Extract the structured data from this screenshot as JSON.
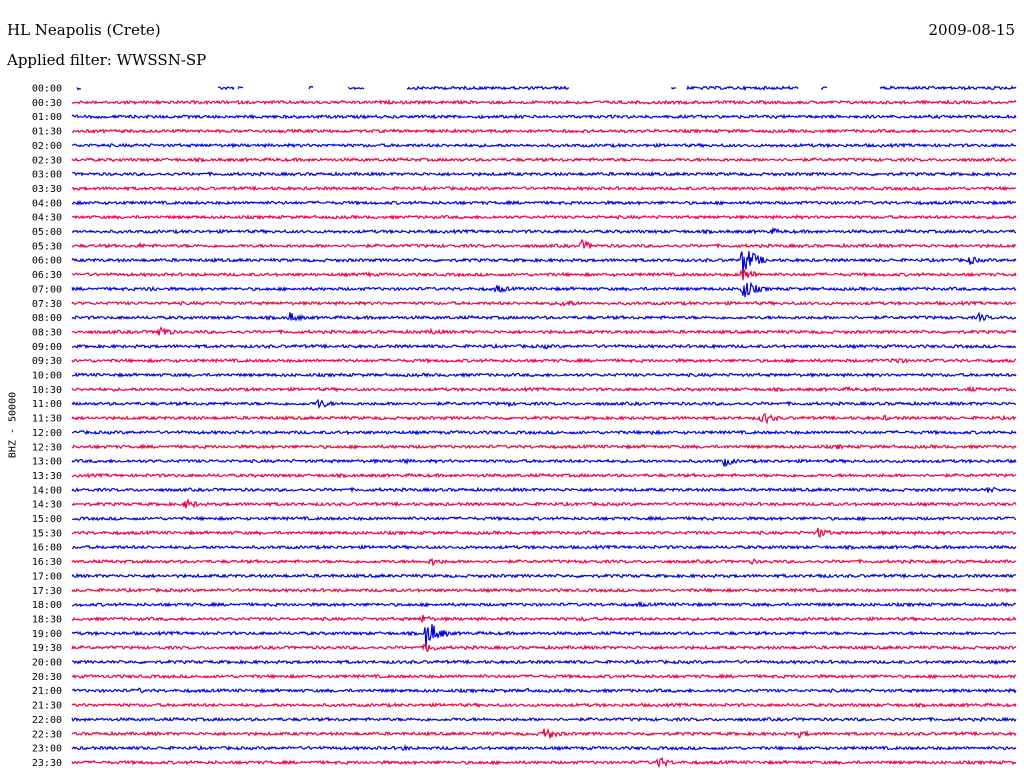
{
  "header": {
    "station": "HL Neapolis (Crete)",
    "date": "2009-08-15",
    "filter": "Applied filter: WWSSN-SP"
  },
  "chart_data": {
    "type": "line",
    "title": "HL Neapolis (Crete)",
    "ylabel": "BHZ - 50000",
    "colors": [
      "#0000dd",
      "#ee0044"
    ],
    "rows": [
      {
        "label": "00:00",
        "gaps": [
          [
            0.0,
            0.005
          ],
          [
            0.01,
            0.154
          ],
          [
            0.172,
            0.175
          ],
          [
            0.182,
            0.25
          ],
          [
            0.256,
            0.292
          ],
          [
            0.31,
            0.354
          ],
          [
            0.527,
            0.634
          ],
          [
            0.64,
            0.651
          ],
          [
            0.77,
            0.793
          ],
          [
            0.8,
            0.855
          ]
        ],
        "events": []
      },
      {
        "label": "00:30",
        "gaps": [],
        "events": []
      },
      {
        "label": "01:00",
        "gaps": [],
        "events": []
      },
      {
        "label": "01:30",
        "gaps": [],
        "events": [
          {
            "t": 0.47,
            "a": 2
          }
        ]
      },
      {
        "label": "02:00",
        "gaps": [],
        "events": []
      },
      {
        "label": "02:30",
        "gaps": [],
        "events": [
          {
            "t": 0.52,
            "a": 2
          }
        ]
      },
      {
        "label": "03:00",
        "gaps": [],
        "events": [
          {
            "t": 0.17,
            "a": 2
          }
        ]
      },
      {
        "label": "03:30",
        "gaps": [],
        "events": [
          {
            "t": 0.6,
            "a": 2
          }
        ]
      },
      {
        "label": "04:00",
        "gaps": [],
        "events": []
      },
      {
        "label": "04:30",
        "gaps": [],
        "events": [
          {
            "t": 0.44,
            "a": 2
          }
        ]
      },
      {
        "label": "05:00",
        "gaps": [],
        "events": [
          {
            "t": 0.74,
            "a": 4
          }
        ]
      },
      {
        "label": "05:30",
        "gaps": [],
        "events": [
          {
            "t": 0.54,
            "a": 6
          },
          {
            "t": 0.07,
            "a": 3
          }
        ]
      },
      {
        "label": "06:00",
        "gaps": [],
        "events": [
          {
            "t": 0.71,
            "a": 18
          },
          {
            "t": 0.95,
            "a": 5
          }
        ]
      },
      {
        "label": "06:30",
        "gaps": [],
        "events": [
          {
            "t": 0.71,
            "a": 8
          },
          {
            "t": 0.31,
            "a": 3
          }
        ]
      },
      {
        "label": "07:00",
        "gaps": [],
        "events": [
          {
            "t": 0.71,
            "a": 12
          },
          {
            "t": 0.08,
            "a": 4
          },
          {
            "t": 0.45,
            "a": 5
          }
        ]
      },
      {
        "label": "07:30",
        "gaps": [],
        "events": [
          {
            "t": 0.52,
            "a": 5
          }
        ]
      },
      {
        "label": "08:00",
        "gaps": [],
        "events": [
          {
            "t": 0.23,
            "a": 6
          },
          {
            "t": 0.96,
            "a": 5
          }
        ]
      },
      {
        "label": "08:30",
        "gaps": [],
        "events": [
          {
            "t": 0.09,
            "a": 8
          },
          {
            "t": 0.38,
            "a": 4
          }
        ]
      },
      {
        "label": "09:00",
        "gaps": [],
        "events": [
          {
            "t": 0.68,
            "a": 3
          },
          {
            "t": 0.5,
            "a": 3
          }
        ]
      },
      {
        "label": "09:30",
        "gaps": [],
        "events": [
          {
            "t": 0.87,
            "a": 5
          }
        ]
      },
      {
        "label": "10:00",
        "gaps": [],
        "events": []
      },
      {
        "label": "10:30",
        "gaps": [],
        "events": [
          {
            "t": 0.82,
            "a": 3
          },
          {
            "t": 0.95,
            "a": 3
          }
        ]
      },
      {
        "label": "11:00",
        "gaps": [],
        "events": [
          {
            "t": 0.26,
            "a": 6
          },
          {
            "t": 0.46,
            "a": 3
          }
        ]
      },
      {
        "label": "11:30",
        "gaps": [],
        "events": [
          {
            "t": 0.73,
            "a": 8
          },
          {
            "t": 0.86,
            "a": 3
          }
        ]
      },
      {
        "label": "12:00",
        "gaps": [],
        "events": [
          {
            "t": 0.61,
            "a": 3
          }
        ]
      },
      {
        "label": "12:30",
        "gaps": [],
        "events": [
          {
            "t": 0.81,
            "a": 3
          }
        ]
      },
      {
        "label": "13:00",
        "gaps": [],
        "events": [
          {
            "t": 0.69,
            "a": 6
          },
          {
            "t": 0.35,
            "a": 3
          }
        ]
      },
      {
        "label": "13:30",
        "gaps": [],
        "events": []
      },
      {
        "label": "14:00",
        "gaps": [],
        "events": [
          {
            "t": 0.97,
            "a": 4
          }
        ]
      },
      {
        "label": "14:30",
        "gaps": [],
        "events": [
          {
            "t": 0.12,
            "a": 6
          }
        ]
      },
      {
        "label": "15:00",
        "gaps": [],
        "events": []
      },
      {
        "label": "15:30",
        "gaps": [],
        "events": [
          {
            "t": 0.79,
            "a": 6
          }
        ]
      },
      {
        "label": "16:00",
        "gaps": [],
        "events": []
      },
      {
        "label": "16:30",
        "gaps": [],
        "events": [
          {
            "t": 0.38,
            "a": 5
          },
          {
            "t": 0.72,
            "a": 3
          }
        ]
      },
      {
        "label": "17:00",
        "gaps": [],
        "events": [
          {
            "t": 0.79,
            "a": 3
          }
        ]
      },
      {
        "label": "17:30",
        "gaps": [],
        "events": []
      },
      {
        "label": "18:00",
        "gaps": [],
        "events": [
          {
            "t": 0.6,
            "a": 3
          }
        ]
      },
      {
        "label": "18:30",
        "gaps": [],
        "events": [
          {
            "t": 0.37,
            "a": 5
          },
          {
            "t": 0.54,
            "a": 3
          }
        ]
      },
      {
        "label": "19:00",
        "gaps": [],
        "events": [
          {
            "t": 0.375,
            "a": 16
          }
        ]
      },
      {
        "label": "19:30",
        "gaps": [],
        "events": [
          {
            "t": 0.375,
            "a": 6
          }
        ]
      },
      {
        "label": "20:00",
        "gaps": [],
        "events": []
      },
      {
        "label": "20:30",
        "gaps": [],
        "events": []
      },
      {
        "label": "21:00",
        "gaps": [],
        "events": [
          {
            "t": 0.07,
            "a": 3
          },
          {
            "t": 0.48,
            "a": 3
          }
        ]
      },
      {
        "label": "21:30",
        "gaps": [],
        "events": []
      },
      {
        "label": "22:00",
        "gaps": [],
        "events": []
      },
      {
        "label": "22:30",
        "gaps": [],
        "events": [
          {
            "t": 0.5,
            "a": 8
          },
          {
            "t": 0.77,
            "a": 4
          }
        ]
      },
      {
        "label": "23:00",
        "gaps": [],
        "events": [
          {
            "t": 0.35,
            "a": 3
          }
        ]
      },
      {
        "label": "23:30",
        "gaps": [],
        "events": [
          {
            "t": 0.62,
            "a": 7
          }
        ]
      }
    ]
  }
}
